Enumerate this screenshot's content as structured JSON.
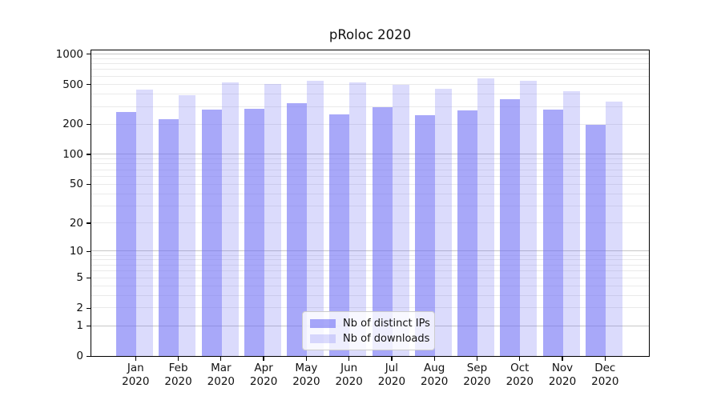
{
  "title": "pRoloc 2020",
  "chart_data": {
    "type": "bar",
    "title": "pRoloc 2020",
    "categories": [
      "Jan 2020",
      "Feb 2020",
      "Mar 2020",
      "Apr 2020",
      "May 2020",
      "Jun 2020",
      "Jul 2020",
      "Aug 2020",
      "Sep 2020",
      "Oct 2020",
      "Nov 2020",
      "Dec 2020"
    ],
    "series": [
      {
        "name": "Nb of distinct IPs",
        "color": "rgba(110,110,245,0.60)",
        "values": [
          265,
          223,
          281,
          287,
          325,
          249,
          294,
          245,
          274,
          353,
          277,
          196
        ]
      },
      {
        "name": "Nb of downloads",
        "color": "rgba(110,110,245,0.25)",
        "values": [
          445,
          387,
          519,
          503,
          544,
          519,
          494,
          451,
          575,
          541,
          425,
          333
        ]
      }
    ],
    "xlabel": "",
    "ylabel": "",
    "yscale": "log1p",
    "ylim": [
      0,
      1085
    ],
    "yticks": [
      0,
      1,
      2,
      5,
      10,
      20,
      50,
      100,
      200,
      500,
      1000
    ],
    "grid_major": [
      1,
      10,
      100,
      1000
    ],
    "grid_minor": [
      2,
      3,
      4,
      5,
      6,
      7,
      8,
      9,
      20,
      30,
      40,
      50,
      60,
      70,
      80,
      90,
      200,
      300,
      400,
      500,
      600,
      700,
      800,
      900
    ],
    "grid": "on",
    "legend": {
      "position": "lower center",
      "items": [
        "Nb of distinct IPs",
        "Nb of downloads"
      ]
    }
  },
  "colors": {
    "background": "#ffffff",
    "spine": "#000000",
    "grid_major": "#c6c6c6",
    "grid_minor": "#eaeaea",
    "tick_label": "#111111",
    "legend_border": "#cccccc",
    "legend_bg": "rgba(255,255,255,0.8)"
  }
}
